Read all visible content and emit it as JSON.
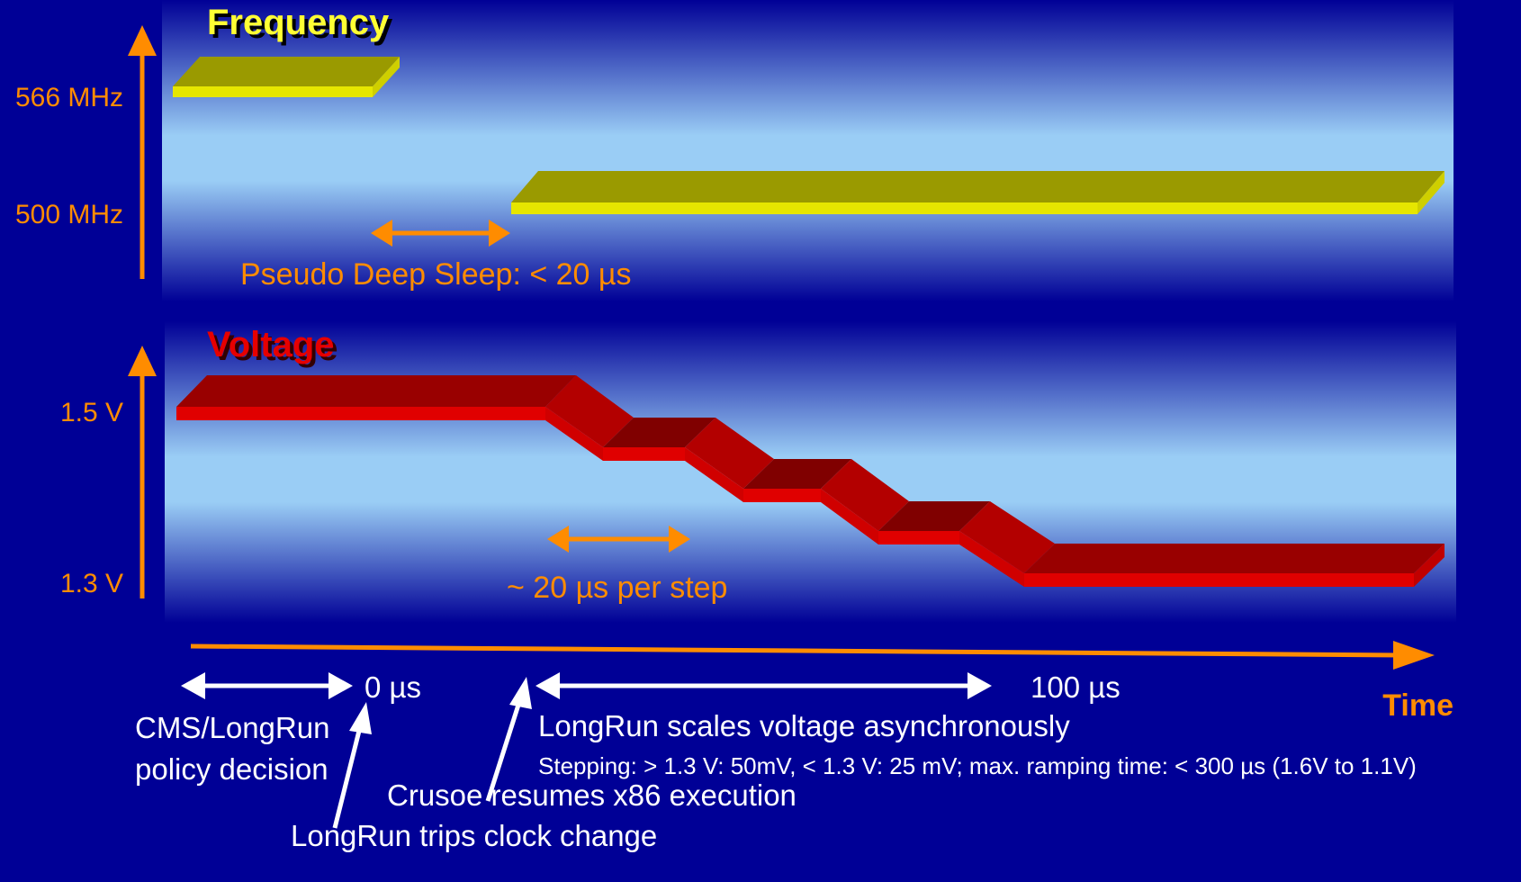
{
  "frequency_panel": {
    "title": "Frequency",
    "levels": [
      "566 MHz",
      "500 MHz"
    ],
    "note": "Pseudo Deep Sleep: < 20 µs"
  },
  "voltage_panel": {
    "title": "Voltage",
    "levels": [
      "1.5 V",
      "1.3 V"
    ],
    "note": "~ 20 µs per step"
  },
  "timeline": {
    "axis_label": "Time",
    "mark_0": "0 µs",
    "mark_100": "100 µs",
    "policy_label_line1": "CMS/LongRun",
    "policy_label_line2": "policy decision",
    "scale_label": "LongRun scales voltage asynchronously",
    "stepping_label": "Stepping: > 1.3 V: 50mV, < 1.3 V: 25 mV; max. ramping time: < 300 µs (1.6V  to 1.1V)",
    "resume_label": "Crusoe resumes x86 execution",
    "trip_label": "LongRun trips clock change"
  },
  "colors": {
    "background": "#000096",
    "accent_orange": "#FF8C00",
    "frequency_yellow": "#D6D600",
    "voltage_red": "#CC0000",
    "label_white": "#FFFFFF"
  }
}
